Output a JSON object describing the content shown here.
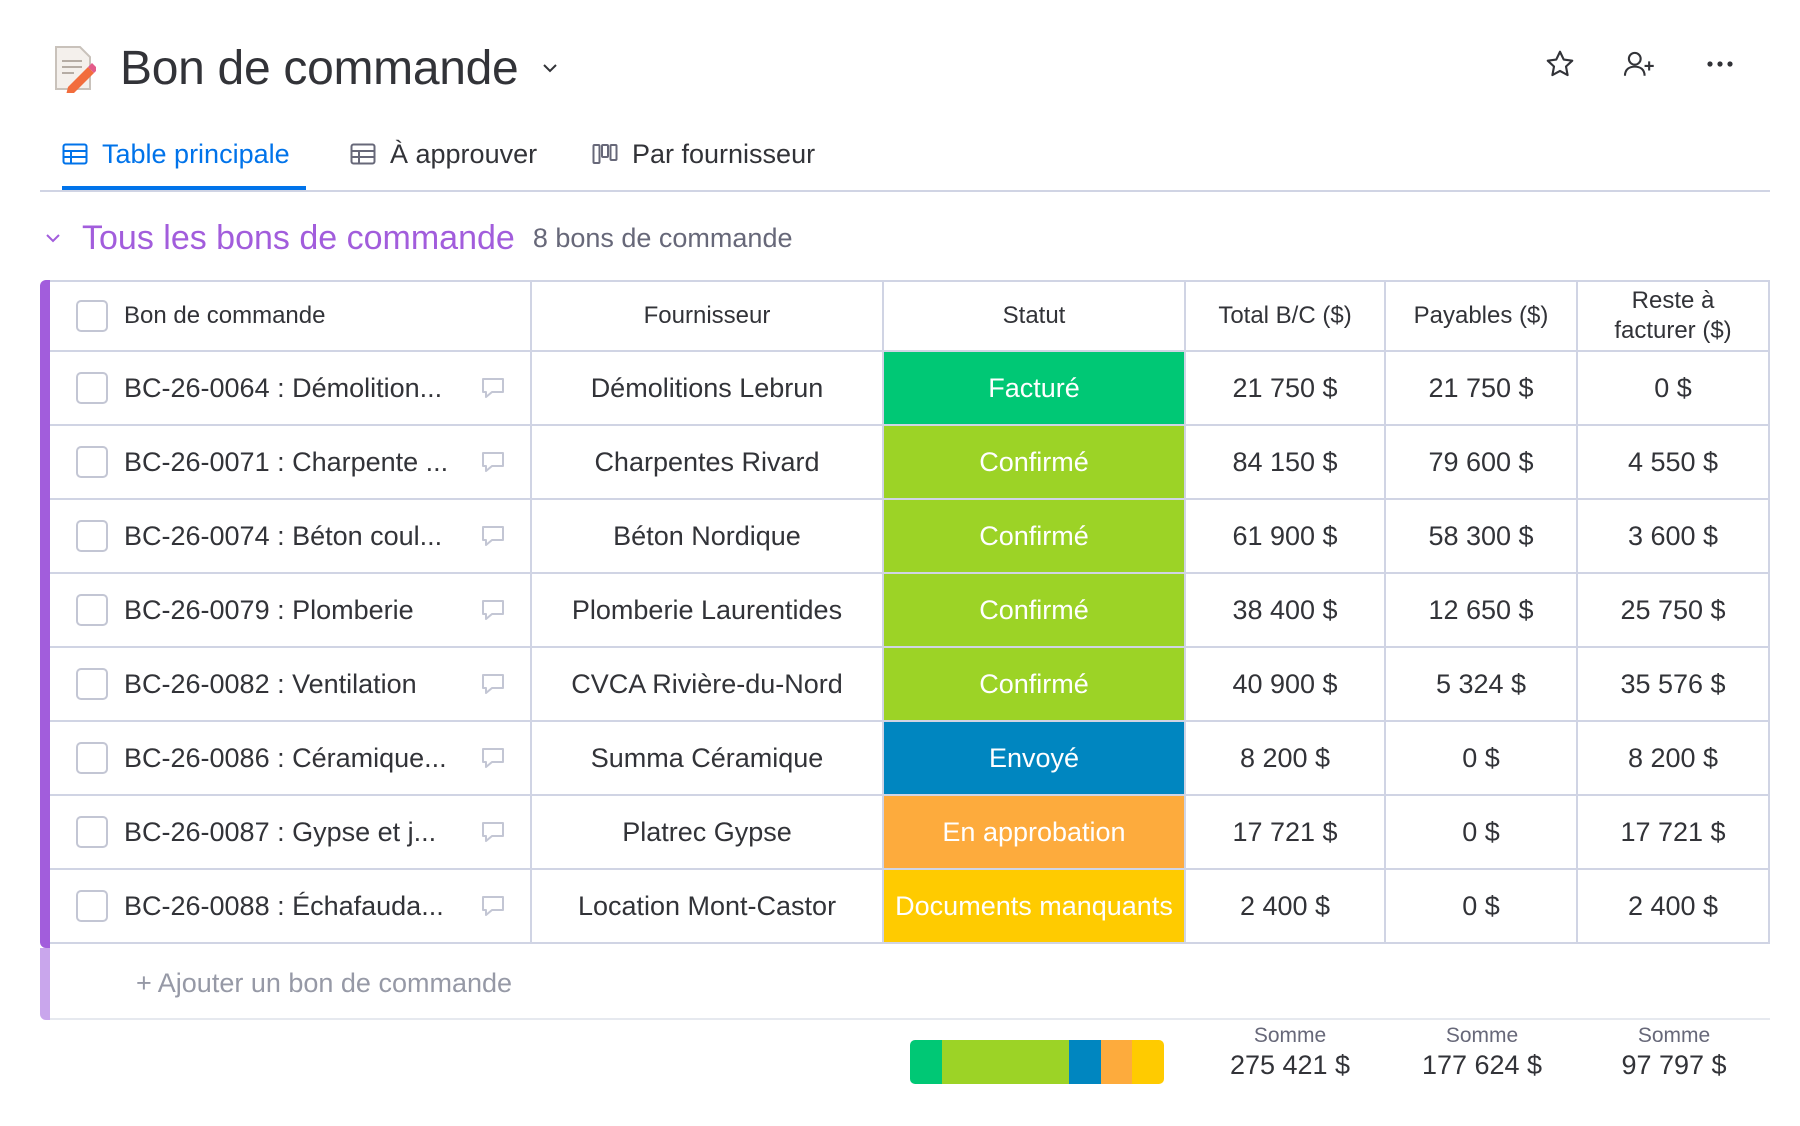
{
  "header": {
    "title": "Bon de commande"
  },
  "tabs": [
    {
      "label": "Table principale",
      "icon": "table-icon",
      "active": true
    },
    {
      "label": "À approuver",
      "icon": "table-icon",
      "active": false
    },
    {
      "label": "Par fournisseur",
      "icon": "kanban-icon",
      "active": false
    }
  ],
  "group": {
    "title": "Tous les bons de commande",
    "count": "8 bons de commande",
    "color": "#a25ddc"
  },
  "columns": [
    "Bon de commande",
    "Fournisseur",
    "Statut",
    "Total B/C ($)",
    "Payables ($)",
    "Reste à facturer ($)"
  ],
  "rows": [
    {
      "name": "BC-26-0064 : Démolition...",
      "supplier": "Démolitions Lebrun",
      "status": "Facturé",
      "status_color": "#00c875",
      "total": "21 750 $",
      "payables": "21 750 $",
      "remaining": "0 $"
    },
    {
      "name": "BC-26-0071 : Charpente ...",
      "supplier": "Charpentes Rivard",
      "status": "Confirmé",
      "status_color": "#9cd326",
      "total": "84 150 $",
      "payables": "79 600 $",
      "remaining": "4 550 $"
    },
    {
      "name": "BC-26-0074 : Béton coul...",
      "supplier": "Béton Nordique",
      "status": "Confirmé",
      "status_color": "#9cd326",
      "total": "61 900 $",
      "payables": "58 300 $",
      "remaining": "3 600 $"
    },
    {
      "name": "BC-26-0079 : Plomberie",
      "supplier": "Plomberie Laurentides",
      "status": "Confirmé",
      "status_color": "#9cd326",
      "total": "38 400 $",
      "payables": "12 650 $",
      "remaining": "25 750 $"
    },
    {
      "name": "BC-26-0082 : Ventilation",
      "supplier": "CVCA Rivière-du-Nord",
      "status": "Confirmé",
      "status_color": "#9cd326",
      "total": "40 900 $",
      "payables": "5 324 $",
      "remaining": "35 576 $"
    },
    {
      "name": "BC-26-0086 : Céramique...",
      "supplier": "Summa Céramique",
      "status": "Envoyé",
      "status_color": "#0086c0",
      "total": "8 200 $",
      "payables": "0 $",
      "remaining": "8 200 $"
    },
    {
      "name": "BC-26-0087 : Gypse et j...",
      "supplier": "Platrec Gypse",
      "status": "En approbation",
      "status_color": "#fdab3d",
      "total": "17 721 $",
      "payables": "0 $",
      "remaining": "17 721 $"
    },
    {
      "name": "BC-26-0088 : Échafauda...",
      "supplier": "Location Mont-Castor",
      "status": "Documents manquants",
      "status_color": "#ffcb00",
      "total": "2 400 $",
      "payables": "0 $",
      "remaining": "2 400 $"
    }
  ],
  "add_row_label": "+ Ajouter un bon de commande",
  "summary": {
    "status_distribution": [
      {
        "color": "#00c875",
        "count": 1
      },
      {
        "color": "#9cd326",
        "count": 4
      },
      {
        "color": "#0086c0",
        "count": 1
      },
      {
        "color": "#fdab3d",
        "count": 1
      },
      {
        "color": "#ffcb00",
        "count": 1
      }
    ],
    "total": {
      "label": "Somme",
      "value": "275 421 $"
    },
    "payables": {
      "label": "Somme",
      "value": "177 624 $"
    },
    "remaining": {
      "label": "Somme",
      "value": "97 797 $"
    }
  }
}
